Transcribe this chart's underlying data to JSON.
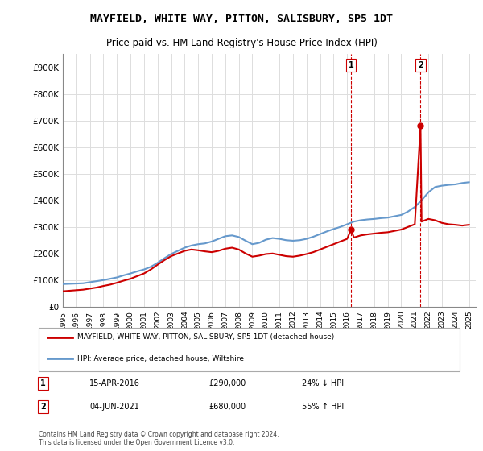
{
  "title": "MAYFIELD, WHITE WAY, PITTON, SALISBURY, SP5 1DT",
  "subtitle": "Price paid vs. HM Land Registry's House Price Index (HPI)",
  "ylabel_ticks": [
    "£0",
    "£100K",
    "£200K",
    "£300K",
    "£400K",
    "£500K",
    "£600K",
    "£700K",
    "£800K",
    "£900K"
  ],
  "ylim": [
    0,
    950000
  ],
  "xlim_start": 1995.0,
  "xlim_end": 2025.5,
  "background_color": "#ffffff",
  "grid_color": "#dddddd",
  "hpi_color": "#6699cc",
  "price_color": "#cc0000",
  "transaction1": {
    "date": 2016.29,
    "price": 290000,
    "label": "1"
  },
  "transaction2": {
    "date": 2021.42,
    "price": 680000,
    "label": "2"
  },
  "legend_entry1": "MAYFIELD, WHITE WAY, PITTON, SALISBURY, SP5 1DT (detached house)",
  "legend_entry2": "HPI: Average price, detached house, Wiltshire",
  "annotation1_text": "15-APR-2016          £290,000          24% ↓ HPI",
  "annotation2_text": "04-JUN-2021          £680,000          55% ↑ HPI",
  "footer": "Contains HM Land Registry data © Crown copyright and database right 2024.\nThis data is licensed under the Open Government Licence v3.0.",
  "hpi_data": [
    [
      1995.0,
      85000
    ],
    [
      1995.5,
      86000
    ],
    [
      1996.0,
      87000
    ],
    [
      1996.5,
      88000
    ],
    [
      1997.0,
      92000
    ],
    [
      1997.5,
      96000
    ],
    [
      1998.0,
      100000
    ],
    [
      1998.5,
      105000
    ],
    [
      1999.0,
      110000
    ],
    [
      1999.5,
      118000
    ],
    [
      2000.0,
      125000
    ],
    [
      2000.5,
      133000
    ],
    [
      2001.0,
      140000
    ],
    [
      2001.5,
      150000
    ],
    [
      2002.0,
      165000
    ],
    [
      2002.5,
      182000
    ],
    [
      2003.0,
      198000
    ],
    [
      2003.5,
      210000
    ],
    [
      2004.0,
      222000
    ],
    [
      2004.5,
      230000
    ],
    [
      2005.0,
      235000
    ],
    [
      2005.5,
      238000
    ],
    [
      2006.0,
      245000
    ],
    [
      2006.5,
      255000
    ],
    [
      2007.0,
      265000
    ],
    [
      2007.5,
      268000
    ],
    [
      2008.0,
      262000
    ],
    [
      2008.5,
      248000
    ],
    [
      2009.0,
      235000
    ],
    [
      2009.5,
      240000
    ],
    [
      2010.0,
      252000
    ],
    [
      2010.5,
      258000
    ],
    [
      2011.0,
      255000
    ],
    [
      2011.5,
      250000
    ],
    [
      2012.0,
      248000
    ],
    [
      2012.5,
      250000
    ],
    [
      2013.0,
      255000
    ],
    [
      2013.5,
      263000
    ],
    [
      2014.0,
      273000
    ],
    [
      2014.5,
      283000
    ],
    [
      2015.0,
      292000
    ],
    [
      2015.5,
      300000
    ],
    [
      2016.0,
      310000
    ],
    [
      2016.5,
      320000
    ],
    [
      2017.0,
      325000
    ],
    [
      2017.5,
      328000
    ],
    [
      2018.0,
      330000
    ],
    [
      2018.5,
      333000
    ],
    [
      2019.0,
      335000
    ],
    [
      2019.5,
      340000
    ],
    [
      2020.0,
      345000
    ],
    [
      2020.5,
      358000
    ],
    [
      2021.0,
      375000
    ],
    [
      2021.5,
      400000
    ],
    [
      2022.0,
      430000
    ],
    [
      2022.5,
      450000
    ],
    [
      2023.0,
      455000
    ],
    [
      2023.5,
      458000
    ],
    [
      2024.0,
      460000
    ],
    [
      2024.5,
      465000
    ],
    [
      2025.0,
      468000
    ]
  ],
  "price_data": [
    [
      1995.0,
      58000
    ],
    [
      1995.5,
      60000
    ],
    [
      1996.0,
      62000
    ],
    [
      1996.5,
      64000
    ],
    [
      1997.0,
      68000
    ],
    [
      1997.5,
      72000
    ],
    [
      1998.0,
      78000
    ],
    [
      1998.5,
      83000
    ],
    [
      1999.0,
      90000
    ],
    [
      1999.5,
      98000
    ],
    [
      2000.0,
      105000
    ],
    [
      2000.5,
      115000
    ],
    [
      2001.0,
      125000
    ],
    [
      2001.5,
      140000
    ],
    [
      2002.0,
      158000
    ],
    [
      2002.5,
      175000
    ],
    [
      2003.0,
      190000
    ],
    [
      2003.5,
      200000
    ],
    [
      2004.0,
      210000
    ],
    [
      2004.5,
      215000
    ],
    [
      2005.0,
      212000
    ],
    [
      2005.5,
      208000
    ],
    [
      2006.0,
      205000
    ],
    [
      2006.5,
      210000
    ],
    [
      2007.0,
      218000
    ],
    [
      2007.5,
      222000
    ],
    [
      2008.0,
      215000
    ],
    [
      2008.5,
      200000
    ],
    [
      2009.0,
      188000
    ],
    [
      2009.5,
      192000
    ],
    [
      2010.0,
      198000
    ],
    [
      2010.5,
      200000
    ],
    [
      2011.0,
      195000
    ],
    [
      2011.5,
      190000
    ],
    [
      2012.0,
      188000
    ],
    [
      2012.5,
      192000
    ],
    [
      2013.0,
      198000
    ],
    [
      2013.5,
      205000
    ],
    [
      2014.0,
      215000
    ],
    [
      2014.5,
      225000
    ],
    [
      2015.0,
      235000
    ],
    [
      2015.5,
      245000
    ],
    [
      2016.0,
      255000
    ],
    [
      2016.29,
      290000
    ],
    [
      2016.5,
      260000
    ],
    [
      2017.0,
      268000
    ],
    [
      2017.5,
      272000
    ],
    [
      2018.0,
      275000
    ],
    [
      2018.5,
      278000
    ],
    [
      2019.0,
      280000
    ],
    [
      2019.5,
      285000
    ],
    [
      2020.0,
      290000
    ],
    [
      2020.5,
      300000
    ],
    [
      2021.0,
      310000
    ],
    [
      2021.42,
      680000
    ],
    [
      2021.5,
      320000
    ],
    [
      2022.0,
      330000
    ],
    [
      2022.5,
      325000
    ],
    [
      2023.0,
      315000
    ],
    [
      2023.5,
      310000
    ],
    [
      2024.0,
      308000
    ],
    [
      2024.5,
      305000
    ],
    [
      2025.0,
      308000
    ]
  ]
}
